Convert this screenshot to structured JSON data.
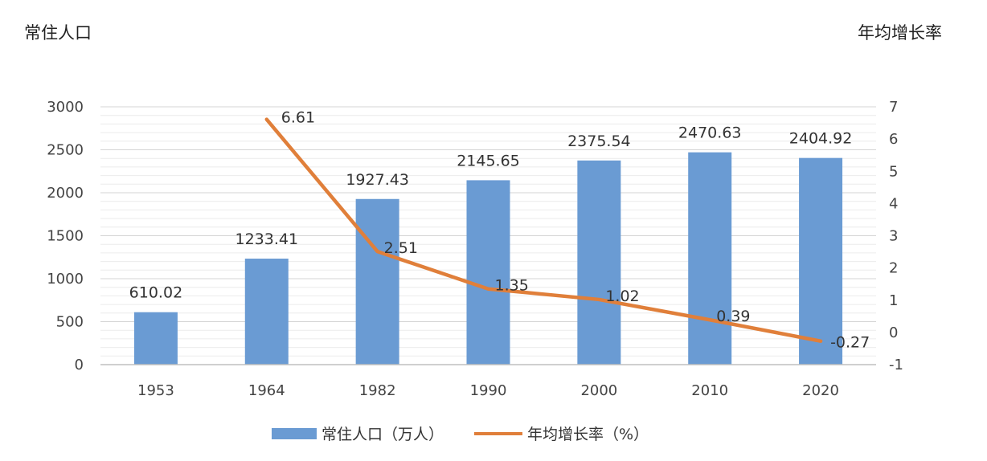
{
  "chart_data": {
    "type": "bar-line",
    "left_axis_label": "常住人口",
    "right_axis_label": "年均增长率",
    "categories": [
      "1953",
      "1964",
      "1982",
      "1990",
      "2000",
      "2010",
      "2020"
    ],
    "series": [
      {
        "name": "常住人口（万人）",
        "type": "bar",
        "axis": "left",
        "values": [
          610.02,
          1233.41,
          1927.43,
          2145.65,
          2375.54,
          2470.63,
          2404.92
        ],
        "labels": [
          "610.02",
          "1233.41",
          "1927.43",
          "2145.65",
          "2375.54",
          "2470.63",
          "2404.92"
        ],
        "color": "#6a9bd3"
      },
      {
        "name": "年均增长率（%）",
        "type": "line",
        "axis": "right",
        "values": [
          null,
          6.61,
          2.51,
          1.35,
          1.02,
          0.39,
          -0.27
        ],
        "labels": [
          "",
          "6.61",
          "2.51",
          "1.35",
          "1.02",
          "0.39",
          "-0.27"
        ],
        "color": "#e07f3a"
      }
    ],
    "left_axis": {
      "min": 0,
      "max": 3000,
      "ticks": [
        "0",
        "500",
        "1000",
        "1500",
        "2000",
        "2500",
        "3000"
      ]
    },
    "right_axis": {
      "min": -1,
      "max": 7,
      "ticks": [
        "-1",
        "0",
        "1",
        "2",
        "3",
        "4",
        "5",
        "6",
        "7"
      ]
    },
    "grid": true,
    "legend_position": "bottom"
  }
}
